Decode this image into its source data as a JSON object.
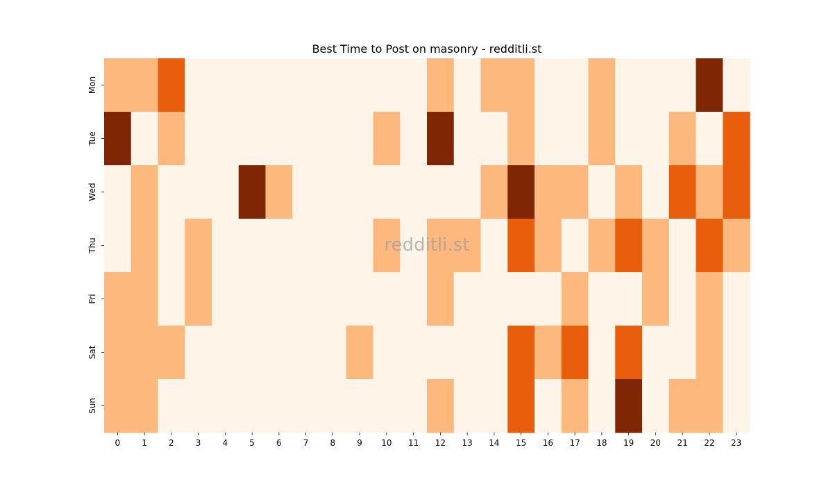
{
  "chart_data": {
    "type": "heatmap",
    "title": "Best Time to Post on masonry - redditli.st",
    "watermark": "redditli.st",
    "x": [
      "0",
      "1",
      "2",
      "3",
      "4",
      "5",
      "6",
      "7",
      "8",
      "9",
      "10",
      "11",
      "12",
      "13",
      "14",
      "15",
      "16",
      "17",
      "18",
      "19",
      "20",
      "21",
      "22",
      "23"
    ],
    "y": [
      "Mon",
      "Tue",
      "Wed",
      "Thu",
      "Fri",
      "Sat",
      "Sun"
    ],
    "values": [
      [
        1,
        1,
        2,
        0,
        0,
        0,
        0,
        0,
        0,
        0,
        0,
        0,
        1,
        0,
        1,
        1,
        0,
        0,
        1,
        0,
        0,
        0,
        3,
        0
      ],
      [
        3,
        0,
        1,
        0,
        0,
        0,
        0,
        0,
        0,
        0,
        1,
        0,
        3,
        0,
        0,
        1,
        0,
        0,
        1,
        0,
        0,
        1,
        0,
        2
      ],
      [
        0,
        1,
        0,
        0,
        0,
        3,
        1,
        0,
        0,
        0,
        0,
        0,
        0,
        0,
        1,
        3,
        1,
        1,
        0,
        1,
        0,
        2,
        1,
        2
      ],
      [
        0,
        1,
        0,
        1,
        0,
        0,
        0,
        0,
        0,
        0,
        1,
        0,
        1,
        1,
        0,
        2,
        1,
        0,
        1,
        2,
        1,
        0,
        2,
        1
      ],
      [
        1,
        1,
        0,
        1,
        0,
        0,
        0,
        0,
        0,
        0,
        0,
        0,
        1,
        0,
        0,
        0,
        0,
        1,
        0,
        0,
        1,
        0,
        1,
        0
      ],
      [
        1,
        1,
        1,
        0,
        0,
        0,
        0,
        0,
        0,
        1,
        0,
        0,
        0,
        0,
        0,
        2,
        1,
        2,
        0,
        2,
        0,
        0,
        1,
        0
      ],
      [
        1,
        1,
        0,
        0,
        0,
        0,
        0,
        0,
        0,
        0,
        0,
        0,
        1,
        0,
        0,
        2,
        0,
        1,
        0,
        3,
        0,
        1,
        1,
        0
      ]
    ],
    "colormap": [
      "#fff4e8",
      "#fdb87d",
      "#e95e0d",
      "#7f2704"
    ],
    "grid": false,
    "legend": "none"
  }
}
